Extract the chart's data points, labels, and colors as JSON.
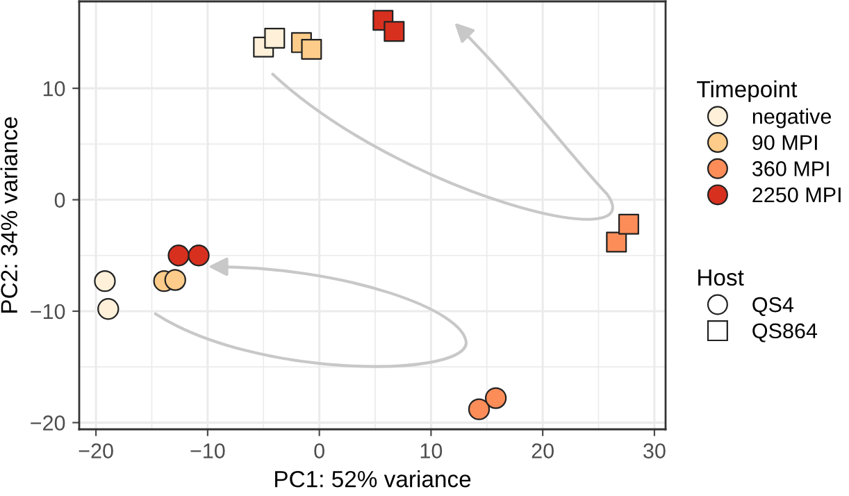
{
  "chart_data": {
    "type": "scatter",
    "xlabel": "PC1: 52% variance",
    "ylabel": "PC2: 34% variance",
    "xlim": [
      -21.5,
      31
    ],
    "ylim": [
      -20.6,
      17.8
    ],
    "xticks": [
      -20,
      -10,
      0,
      10,
      20,
      30
    ],
    "yticks": [
      -20,
      -10,
      0,
      10
    ],
    "grid": true,
    "legend": "right",
    "legend_title": [
      "Timepoint",
      "Host"
    ],
    "series": [
      {
        "name": "negative",
        "color": "#fef0d9",
        "marker": [
          "circle",
          "circle",
          "square",
          "square"
        ],
        "x": [
          -19.2,
          -18.9,
          -5.0,
          -4.0
        ],
        "values": [
          -7.3,
          -9.8,
          13.7,
          14.5
        ]
      },
      {
        "name": "90 MPI",
        "color": "#fdcc8a",
        "marker": [
          "circle",
          "circle",
          "square",
          "square"
        ],
        "x": [
          -13.9,
          -12.9,
          -1.6,
          -0.7
        ],
        "values": [
          -7.3,
          -7.2,
          14.1,
          13.5
        ]
      },
      {
        "name": "360 MPI",
        "color": "#fc8d59",
        "marker": [
          "circle",
          "circle",
          "square",
          "square"
        ],
        "x": [
          14.3,
          15.8,
          26.6,
          27.7
        ],
        "values": [
          -18.8,
          -17.8,
          -3.8,
          -2.2
        ]
      },
      {
        "name": "2250 MPI",
        "color": "#d7301f",
        "marker": [
          "circle",
          "circle",
          "square",
          "square"
        ],
        "x": [
          -12.6,
          -10.8,
          5.7,
          6.7
        ],
        "values": [
          -5.0,
          -5.0,
          16.1,
          15.1
        ]
      },
      {
        "name": "QS4",
        "color": "#ffffff",
        "marker": "circle"
      },
      {
        "name": "QS864",
        "color": "#ffffff",
        "marker": "square"
      }
    ]
  }
}
